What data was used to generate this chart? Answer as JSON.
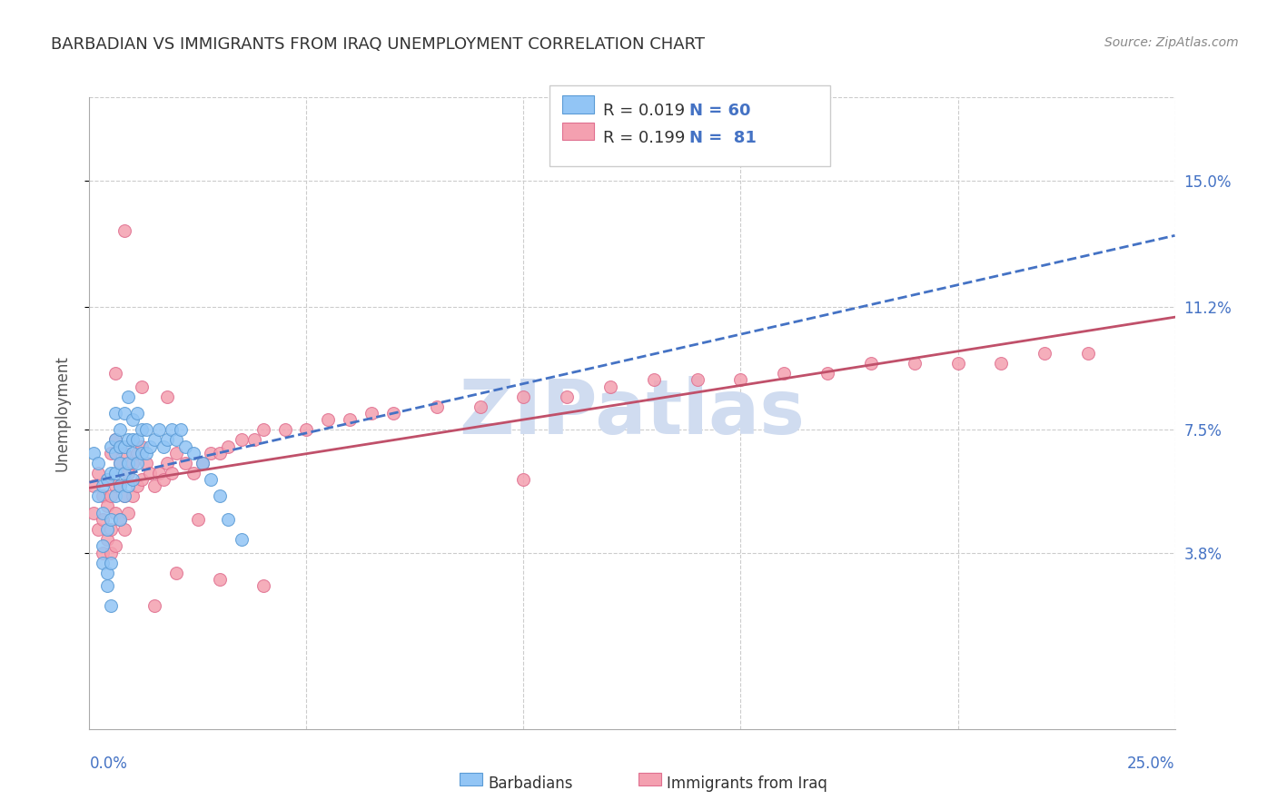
{
  "title": "BARBADIAN VS IMMIGRANTS FROM IRAQ UNEMPLOYMENT CORRELATION CHART",
  "source": "Source: ZipAtlas.com",
  "ylabel": "Unemployment",
  "ytick_labels": [
    "15.0%",
    "11.2%",
    "7.5%",
    "3.8%"
  ],
  "ytick_values": [
    0.15,
    0.112,
    0.075,
    0.038
  ],
  "xlim": [
    0.0,
    0.25
  ],
  "ylim": [
    -0.015,
    0.175
  ],
  "legend_blue_r": "R = 0.019",
  "legend_blue_n": "N = 60",
  "legend_pink_r": "R = 0.199",
  "legend_pink_n": "N =  81",
  "blue_color": "#92C5F5",
  "pink_color": "#F4A0B0",
  "blue_edge_color": "#5B9BD5",
  "pink_edge_color": "#E07090",
  "blue_line_color": "#4472C4",
  "pink_line_color": "#C0506A",
  "watermark": "ZIPatlas",
  "watermark_color": "#D0DCF0",
  "background_color": "#ffffff",
  "blue_scatter_x": [
    0.001,
    0.002,
    0.002,
    0.003,
    0.003,
    0.003,
    0.003,
    0.004,
    0.004,
    0.004,
    0.004,
    0.005,
    0.005,
    0.005,
    0.005,
    0.005,
    0.006,
    0.006,
    0.006,
    0.006,
    0.006,
    0.007,
    0.007,
    0.007,
    0.007,
    0.007,
    0.008,
    0.008,
    0.008,
    0.008,
    0.009,
    0.009,
    0.009,
    0.009,
    0.01,
    0.01,
    0.01,
    0.01,
    0.011,
    0.011,
    0.011,
    0.012,
    0.012,
    0.013,
    0.013,
    0.014,
    0.015,
    0.016,
    0.017,
    0.018,
    0.019,
    0.02,
    0.021,
    0.022,
    0.024,
    0.026,
    0.028,
    0.03,
    0.032,
    0.035
  ],
  "blue_scatter_y": [
    0.068,
    0.055,
    0.065,
    0.035,
    0.04,
    0.05,
    0.058,
    0.028,
    0.032,
    0.045,
    0.06,
    0.022,
    0.035,
    0.048,
    0.062,
    0.07,
    0.055,
    0.062,
    0.068,
    0.072,
    0.08,
    0.048,
    0.058,
    0.065,
    0.07,
    0.075,
    0.055,
    0.062,
    0.07,
    0.08,
    0.058,
    0.065,
    0.072,
    0.085,
    0.06,
    0.068,
    0.072,
    0.078,
    0.065,
    0.072,
    0.08,
    0.068,
    0.075,
    0.068,
    0.075,
    0.07,
    0.072,
    0.075,
    0.07,
    0.072,
    0.075,
    0.072,
    0.075,
    0.07,
    0.068,
    0.065,
    0.06,
    0.055,
    0.048,
    0.042
  ],
  "pink_scatter_x": [
    0.001,
    0.001,
    0.002,
    0.002,
    0.003,
    0.003,
    0.003,
    0.004,
    0.004,
    0.004,
    0.005,
    0.005,
    0.005,
    0.005,
    0.006,
    0.006,
    0.006,
    0.006,
    0.007,
    0.007,
    0.007,
    0.008,
    0.008,
    0.008,
    0.009,
    0.009,
    0.01,
    0.01,
    0.011,
    0.011,
    0.012,
    0.012,
    0.013,
    0.014,
    0.015,
    0.016,
    0.017,
    0.018,
    0.019,
    0.02,
    0.022,
    0.024,
    0.026,
    0.028,
    0.03,
    0.032,
    0.035,
    0.038,
    0.04,
    0.045,
    0.05,
    0.055,
    0.06,
    0.065,
    0.07,
    0.08,
    0.09,
    0.1,
    0.11,
    0.12,
    0.13,
    0.14,
    0.15,
    0.16,
    0.17,
    0.18,
    0.19,
    0.2,
    0.21,
    0.22,
    0.23,
    0.1,
    0.025,
    0.02,
    0.03,
    0.04,
    0.008,
    0.015,
    0.006,
    0.012,
    0.018
  ],
  "pink_scatter_y": [
    0.05,
    0.058,
    0.045,
    0.062,
    0.038,
    0.048,
    0.055,
    0.042,
    0.052,
    0.06,
    0.038,
    0.045,
    0.055,
    0.068,
    0.04,
    0.05,
    0.058,
    0.072,
    0.048,
    0.058,
    0.065,
    0.045,
    0.055,
    0.068,
    0.05,
    0.062,
    0.055,
    0.065,
    0.058,
    0.068,
    0.06,
    0.07,
    0.065,
    0.062,
    0.058,
    0.062,
    0.06,
    0.065,
    0.062,
    0.068,
    0.065,
    0.062,
    0.065,
    0.068,
    0.068,
    0.07,
    0.072,
    0.072,
    0.075,
    0.075,
    0.075,
    0.078,
    0.078,
    0.08,
    0.08,
    0.082,
    0.082,
    0.085,
    0.085,
    0.088,
    0.09,
    0.09,
    0.09,
    0.092,
    0.092,
    0.095,
    0.095,
    0.095,
    0.095,
    0.098,
    0.098,
    0.06,
    0.048,
    0.032,
    0.03,
    0.028,
    0.135,
    0.022,
    0.092,
    0.088,
    0.085
  ]
}
